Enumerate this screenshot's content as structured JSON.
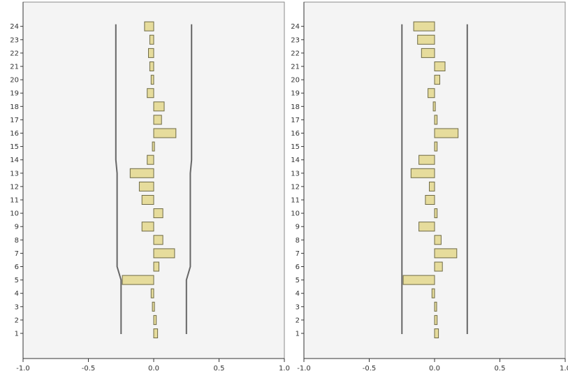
{
  "chart_data": [
    {
      "type": "bar",
      "orientation": "horizontal",
      "categories": [
        "1",
        "2",
        "3",
        "4",
        "5",
        "6",
        "7",
        "8",
        "9",
        "10",
        "11",
        "12",
        "13",
        "14",
        "15",
        "16",
        "17",
        "18",
        "19",
        "20",
        "21",
        "22",
        "23",
        "24"
      ],
      "values": [
        0.03,
        0.02,
        -0.01,
        -0.02,
        -0.24,
        0.04,
        0.16,
        0.07,
        -0.09,
        0.07,
        -0.09,
        -0.11,
        -0.18,
        -0.05,
        -0.01,
        0.17,
        0.06,
        0.08,
        -0.05,
        -0.02,
        -0.03,
        -0.04,
        -0.03,
        -0.07
      ],
      "xlim": [
        -1.0,
        1.0
      ],
      "x_ticks": [
        "-1.0",
        "-0.5",
        "0.0",
        "0.5",
        "1.0"
      ],
      "confidence_limits": {
        "upper": [
          0.25,
          0.25,
          0.25,
          0.25,
          0.25,
          0.28,
          0.28,
          0.28,
          0.28,
          0.28,
          0.28,
          0.28,
          0.28,
          0.29,
          0.29,
          0.29,
          0.29,
          0.29,
          0.29,
          0.29,
          0.29,
          0.29,
          0.29,
          0.29
        ],
        "lower": [
          -0.25,
          -0.25,
          -0.25,
          -0.25,
          -0.25,
          -0.28,
          -0.28,
          -0.28,
          -0.28,
          -0.28,
          -0.28,
          -0.28,
          -0.28,
          -0.29,
          -0.29,
          -0.29,
          -0.29,
          -0.29,
          -0.29,
          -0.29,
          -0.29,
          -0.29,
          -0.29,
          -0.29
        ]
      },
      "grid": false
    },
    {
      "type": "bar",
      "orientation": "horizontal",
      "categories": [
        "1",
        "2",
        "3",
        "4",
        "5",
        "6",
        "7",
        "8",
        "9",
        "10",
        "11",
        "12",
        "13",
        "14",
        "15",
        "16",
        "17",
        "18",
        "19",
        "20",
        "21",
        "22",
        "23",
        "24"
      ],
      "values": [
        0.03,
        0.02,
        0.01,
        -0.02,
        -0.24,
        0.06,
        0.17,
        0.05,
        -0.12,
        0.02,
        -0.07,
        -0.04,
        -0.18,
        -0.12,
        0.02,
        0.18,
        0.02,
        -0.01,
        -0.05,
        0.04,
        0.08,
        -0.1,
        -0.13,
        -0.16
      ],
      "xlim": [
        -1.0,
        1.0
      ],
      "x_ticks": [
        "-1.0",
        "-0.5",
        "0.0",
        "0.5",
        "1.0"
      ],
      "confidence_limits": {
        "upper": [
          0.25,
          0.25,
          0.25,
          0.25,
          0.25,
          0.25,
          0.25,
          0.25,
          0.25,
          0.25,
          0.25,
          0.25,
          0.25,
          0.25,
          0.25,
          0.25,
          0.25,
          0.25,
          0.25,
          0.25,
          0.25,
          0.25,
          0.25,
          0.25
        ],
        "lower": [
          -0.25,
          -0.25,
          -0.25,
          -0.25,
          -0.25,
          -0.25,
          -0.25,
          -0.25,
          -0.25,
          -0.25,
          -0.25,
          -0.25,
          -0.25,
          -0.25,
          -0.25,
          -0.25,
          -0.25,
          -0.25,
          -0.25,
          -0.25,
          -0.25,
          -0.25,
          -0.25,
          -0.25
        ]
      },
      "grid": false
    }
  ],
  "colors": {
    "bar_fill": "#e6dc9c",
    "bar_stroke": "#6e6a45",
    "confidence_line": "#666666",
    "panel_background": "#f4f4f4"
  }
}
